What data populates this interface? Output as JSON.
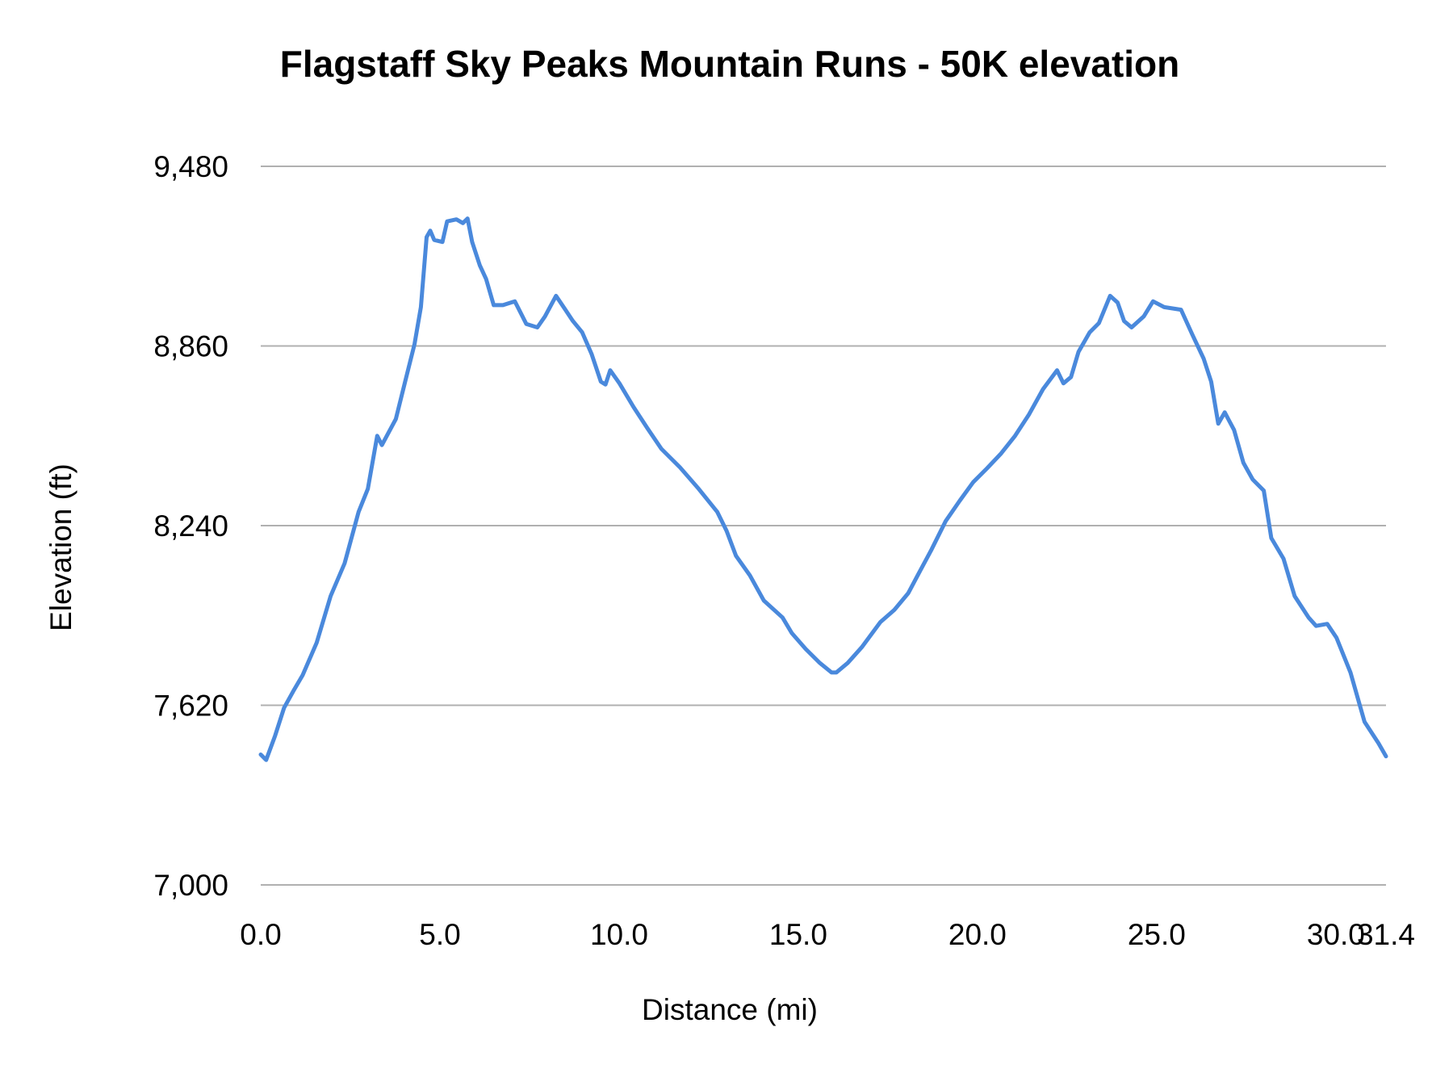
{
  "chart_data": {
    "type": "line",
    "title": "Flagstaff Sky Peaks Mountain Runs - 50K elevation",
    "xlabel": "Distance (mi)",
    "ylabel": "Elevation (ft)",
    "xlim": [
      0,
      31.4
    ],
    "ylim": [
      7000,
      9480
    ],
    "x_ticks": [
      "0.0",
      "5.0",
      "10.0",
      "15.0",
      "20.0",
      "25.0",
      "30.0",
      "31.4"
    ],
    "x_tick_values": [
      0,
      5,
      10,
      15,
      20,
      25,
      30,
      31.4
    ],
    "y_ticks": [
      "9,480",
      "8,860",
      "8,240",
      "7,620",
      "7,000"
    ],
    "y_tick_values": [
      9480,
      8860,
      8240,
      7620,
      7000
    ],
    "grid": "horizontal",
    "legend": "none",
    "line_color": "#4a89dc",
    "grid_color": "#b0b0b0",
    "series": [
      {
        "x": [
          0,
          0.15,
          0.4,
          0.65,
          0.91,
          1.17,
          1.56,
          1.95,
          2.34,
          2.73,
          2.99,
          3.25,
          3.38,
          3.77,
          4.03,
          4.29,
          4.47,
          4.63,
          4.73,
          4.84,
          5.07,
          5.2,
          5.46,
          5.64,
          5.77,
          5.9,
          6.11,
          6.29,
          6.5,
          6.76,
          7.09,
          7.41,
          7.72,
          7.93,
          8.24,
          8.5,
          8.71,
          8.97,
          9.23,
          9.49,
          9.62,
          9.75,
          10.01,
          10.4,
          10.79,
          11.18,
          11.7,
          12.22,
          12.74,
          13.0,
          13.26,
          13.65,
          14.04,
          14.56,
          14.82,
          15.21,
          15.6,
          15.93,
          16.06,
          16.38,
          16.77,
          17.29,
          17.68,
          18.07,
          18.33,
          18.72,
          19.11,
          19.5,
          19.88,
          20.27,
          20.66,
          21.05,
          21.44,
          21.83,
          22.22,
          22.4,
          22.61,
          22.82,
          23.13,
          23.39,
          23.7,
          23.91,
          24.09,
          24.3,
          24.64,
          24.9,
          25.21,
          25.68,
          26.0,
          26.31,
          26.52,
          26.72,
          26.9,
          27.16,
          27.42,
          27.68,
          27.99,
          28.2,
          28.54,
          28.85,
          29.24,
          29.45,
          29.76,
          30.02,
          30.41,
          30.8,
          31.19,
          31.4
        ],
        "y": [
          7450,
          7431,
          7515,
          7611,
          7669,
          7724,
          7836,
          7997,
          8110,
          8287,
          8367,
          8550,
          8518,
          8608,
          8737,
          8866,
          8994,
          9236,
          9258,
          9226,
          9219,
          9290,
          9297,
          9284,
          9300,
          9219,
          9139,
          9091,
          9001,
          9001,
          9014,
          8936,
          8924,
          8962,
          9033,
          8985,
          8946,
          8907,
          8833,
          8737,
          8727,
          8776,
          8731,
          8650,
          8576,
          8505,
          8441,
          8367,
          8287,
          8222,
          8136,
          8068,
          7981,
          7923,
          7869,
          7814,
          7766,
          7733,
          7733,
          7766,
          7820,
          7907,
          7949,
          8007,
          8068,
          8158,
          8255,
          8325,
          8390,
          8438,
          8489,
          8550,
          8624,
          8711,
          8776,
          8731,
          8753,
          8840,
          8907,
          8939,
          9033,
          9010,
          8946,
          8924,
          8962,
          9014,
          8994,
          8985,
          8898,
          8817,
          8737,
          8592,
          8631,
          8570,
          8457,
          8399,
          8361,
          8197,
          8126,
          7997,
          7923,
          7894,
          7901,
          7853,
          7733,
          7563,
          7489,
          7444
        ]
      }
    ]
  }
}
